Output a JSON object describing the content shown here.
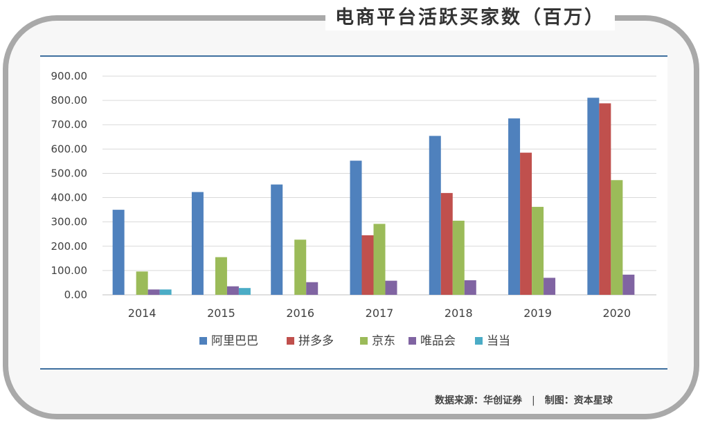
{
  "title": "电商平台活跃买家数（百万）",
  "footer": {
    "source": "数据来源：华创证券",
    "separator": "|",
    "maker": "制图：资本星球"
  },
  "chart_data": {
    "type": "bar",
    "title": "电商平台活跃买家数（百万）",
    "categories": [
      "2014",
      "2015",
      "2016",
      "2017",
      "2018",
      "2019",
      "2020"
    ],
    "ylim": [
      0,
      900
    ],
    "yticks": [
      "0.00",
      "100.00",
      "200.00",
      "300.00",
      "400.00",
      "500.00",
      "600.00",
      "700.00",
      "800.00",
      "900.00"
    ],
    "grid": true,
    "legend_position": "bottom",
    "series": [
      {
        "name": "阿里巴巴",
        "color": "#4f81bd",
        "values": [
          350,
          423,
          454,
          552,
          654,
          726,
          811
        ]
      },
      {
        "name": "拼多多",
        "color": "#c0504d",
        "values": [
          null,
          null,
          null,
          245,
          419,
          585,
          788
        ]
      },
      {
        "name": "京东",
        "color": "#9bbb59",
        "values": [
          96,
          155,
          227,
          292,
          305,
          362,
          472
        ]
      },
      {
        "name": "唯品会",
        "color": "#8064a2",
        "values": [
          22,
          35,
          52,
          58,
          60,
          70,
          83
        ]
      },
      {
        "name": "当当",
        "color": "#4bacc6",
        "values": [
          22,
          28,
          null,
          null,
          null,
          null,
          null
        ]
      }
    ]
  }
}
